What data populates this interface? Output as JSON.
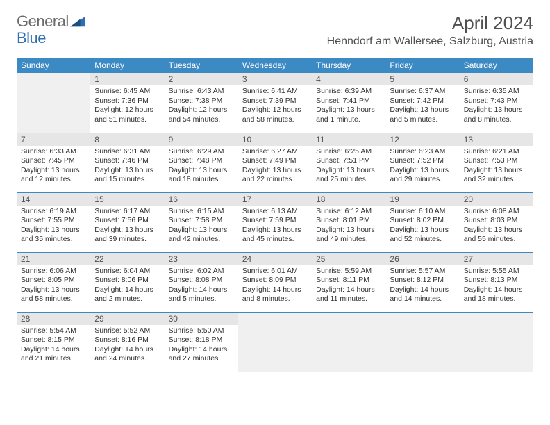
{
  "logo": {
    "general": "General",
    "blue": "Blue"
  },
  "title": "April 2024",
  "location": "Henndorf am Wallersee, Salzburg, Austria",
  "colors": {
    "header_bg": "#3b8ac4",
    "header_text": "#ffffff",
    "daynum_bg": "#e6e6e6",
    "empty_bg": "#f0f0f0",
    "border": "#3b8ac4",
    "body_text": "#303030",
    "title_text": "#505050",
    "logo_gray": "#6a6a6a",
    "logo_blue": "#2d6fb0"
  },
  "day_labels": [
    "Sunday",
    "Monday",
    "Tuesday",
    "Wednesday",
    "Thursday",
    "Friday",
    "Saturday"
  ],
  "weeks": [
    [
      {
        "n": "",
        "sunrise": "",
        "sunset": "",
        "daylight": ""
      },
      {
        "n": "1",
        "sunrise": "Sunrise: 6:45 AM",
        "sunset": "Sunset: 7:36 PM",
        "daylight": "Daylight: 12 hours and 51 minutes."
      },
      {
        "n": "2",
        "sunrise": "Sunrise: 6:43 AM",
        "sunset": "Sunset: 7:38 PM",
        "daylight": "Daylight: 12 hours and 54 minutes."
      },
      {
        "n": "3",
        "sunrise": "Sunrise: 6:41 AM",
        "sunset": "Sunset: 7:39 PM",
        "daylight": "Daylight: 12 hours and 58 minutes."
      },
      {
        "n": "4",
        "sunrise": "Sunrise: 6:39 AM",
        "sunset": "Sunset: 7:41 PM",
        "daylight": "Daylight: 13 hours and 1 minute."
      },
      {
        "n": "5",
        "sunrise": "Sunrise: 6:37 AM",
        "sunset": "Sunset: 7:42 PM",
        "daylight": "Daylight: 13 hours and 5 minutes."
      },
      {
        "n": "6",
        "sunrise": "Sunrise: 6:35 AM",
        "sunset": "Sunset: 7:43 PM",
        "daylight": "Daylight: 13 hours and 8 minutes."
      }
    ],
    [
      {
        "n": "7",
        "sunrise": "Sunrise: 6:33 AM",
        "sunset": "Sunset: 7:45 PM",
        "daylight": "Daylight: 13 hours and 12 minutes."
      },
      {
        "n": "8",
        "sunrise": "Sunrise: 6:31 AM",
        "sunset": "Sunset: 7:46 PM",
        "daylight": "Daylight: 13 hours and 15 minutes."
      },
      {
        "n": "9",
        "sunrise": "Sunrise: 6:29 AM",
        "sunset": "Sunset: 7:48 PM",
        "daylight": "Daylight: 13 hours and 18 minutes."
      },
      {
        "n": "10",
        "sunrise": "Sunrise: 6:27 AM",
        "sunset": "Sunset: 7:49 PM",
        "daylight": "Daylight: 13 hours and 22 minutes."
      },
      {
        "n": "11",
        "sunrise": "Sunrise: 6:25 AM",
        "sunset": "Sunset: 7:51 PM",
        "daylight": "Daylight: 13 hours and 25 minutes."
      },
      {
        "n": "12",
        "sunrise": "Sunrise: 6:23 AM",
        "sunset": "Sunset: 7:52 PM",
        "daylight": "Daylight: 13 hours and 29 minutes."
      },
      {
        "n": "13",
        "sunrise": "Sunrise: 6:21 AM",
        "sunset": "Sunset: 7:53 PM",
        "daylight": "Daylight: 13 hours and 32 minutes."
      }
    ],
    [
      {
        "n": "14",
        "sunrise": "Sunrise: 6:19 AM",
        "sunset": "Sunset: 7:55 PM",
        "daylight": "Daylight: 13 hours and 35 minutes."
      },
      {
        "n": "15",
        "sunrise": "Sunrise: 6:17 AM",
        "sunset": "Sunset: 7:56 PM",
        "daylight": "Daylight: 13 hours and 39 minutes."
      },
      {
        "n": "16",
        "sunrise": "Sunrise: 6:15 AM",
        "sunset": "Sunset: 7:58 PM",
        "daylight": "Daylight: 13 hours and 42 minutes."
      },
      {
        "n": "17",
        "sunrise": "Sunrise: 6:13 AM",
        "sunset": "Sunset: 7:59 PM",
        "daylight": "Daylight: 13 hours and 45 minutes."
      },
      {
        "n": "18",
        "sunrise": "Sunrise: 6:12 AM",
        "sunset": "Sunset: 8:01 PM",
        "daylight": "Daylight: 13 hours and 49 minutes."
      },
      {
        "n": "19",
        "sunrise": "Sunrise: 6:10 AM",
        "sunset": "Sunset: 8:02 PM",
        "daylight": "Daylight: 13 hours and 52 minutes."
      },
      {
        "n": "20",
        "sunrise": "Sunrise: 6:08 AM",
        "sunset": "Sunset: 8:03 PM",
        "daylight": "Daylight: 13 hours and 55 minutes."
      }
    ],
    [
      {
        "n": "21",
        "sunrise": "Sunrise: 6:06 AM",
        "sunset": "Sunset: 8:05 PM",
        "daylight": "Daylight: 13 hours and 58 minutes."
      },
      {
        "n": "22",
        "sunrise": "Sunrise: 6:04 AM",
        "sunset": "Sunset: 8:06 PM",
        "daylight": "Daylight: 14 hours and 2 minutes."
      },
      {
        "n": "23",
        "sunrise": "Sunrise: 6:02 AM",
        "sunset": "Sunset: 8:08 PM",
        "daylight": "Daylight: 14 hours and 5 minutes."
      },
      {
        "n": "24",
        "sunrise": "Sunrise: 6:01 AM",
        "sunset": "Sunset: 8:09 PM",
        "daylight": "Daylight: 14 hours and 8 minutes."
      },
      {
        "n": "25",
        "sunrise": "Sunrise: 5:59 AM",
        "sunset": "Sunset: 8:11 PM",
        "daylight": "Daylight: 14 hours and 11 minutes."
      },
      {
        "n": "26",
        "sunrise": "Sunrise: 5:57 AM",
        "sunset": "Sunset: 8:12 PM",
        "daylight": "Daylight: 14 hours and 14 minutes."
      },
      {
        "n": "27",
        "sunrise": "Sunrise: 5:55 AM",
        "sunset": "Sunset: 8:13 PM",
        "daylight": "Daylight: 14 hours and 18 minutes."
      }
    ],
    [
      {
        "n": "28",
        "sunrise": "Sunrise: 5:54 AM",
        "sunset": "Sunset: 8:15 PM",
        "daylight": "Daylight: 14 hours and 21 minutes."
      },
      {
        "n": "29",
        "sunrise": "Sunrise: 5:52 AM",
        "sunset": "Sunset: 8:16 PM",
        "daylight": "Daylight: 14 hours and 24 minutes."
      },
      {
        "n": "30",
        "sunrise": "Sunrise: 5:50 AM",
        "sunset": "Sunset: 8:18 PM",
        "daylight": "Daylight: 14 hours and 27 minutes."
      },
      {
        "n": "",
        "sunrise": "",
        "sunset": "",
        "daylight": ""
      },
      {
        "n": "",
        "sunrise": "",
        "sunset": "",
        "daylight": ""
      },
      {
        "n": "",
        "sunrise": "",
        "sunset": "",
        "daylight": ""
      },
      {
        "n": "",
        "sunrise": "",
        "sunset": "",
        "daylight": ""
      }
    ]
  ]
}
